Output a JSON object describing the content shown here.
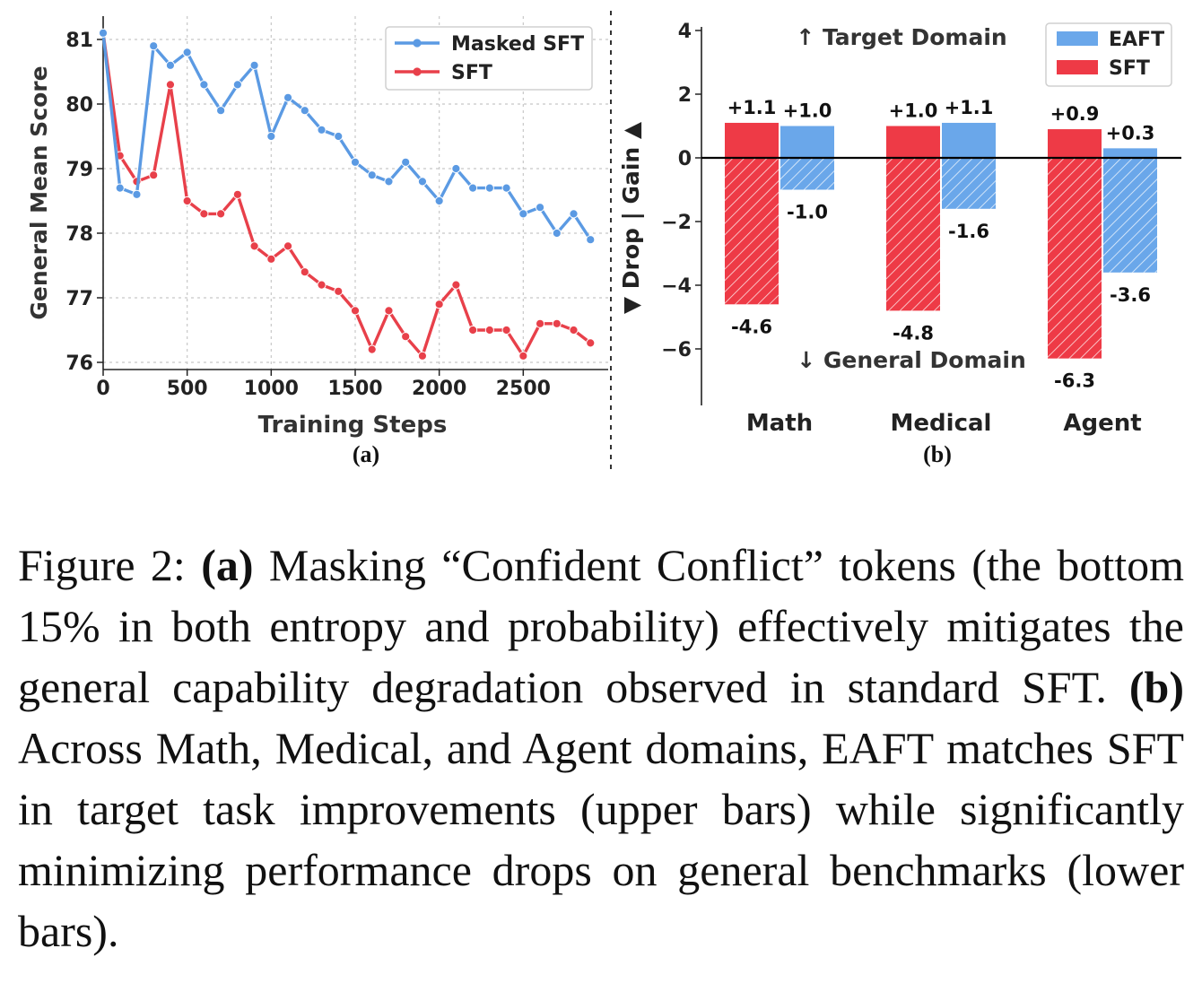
{
  "chart_data": [
    {
      "type": "line",
      "panel_label": "(a)",
      "xlabel": "Training Steps",
      "ylabel": "General Mean Score",
      "xlim": [
        0,
        2920
      ],
      "ylim": [
        75.9,
        81.2
      ],
      "xticks": [
        "0",
        "500",
        "1000",
        "1500",
        "2000",
        "2500"
      ],
      "yticks": [
        "76",
        "77",
        "78",
        "79",
        "80",
        "81"
      ],
      "legend_position": "top-right",
      "grid": true,
      "series": [
        {
          "name": "Masked SFT",
          "color": "#5b9ae3",
          "x": [
            0,
            100,
            200,
            300,
            400,
            500,
            600,
            700,
            800,
            900,
            1000,
            1100,
            1200,
            1300,
            1400,
            1500,
            1600,
            1700,
            1800,
            1900,
            2000,
            2100,
            2200,
            2300,
            2400,
            2500,
            2600,
            2700,
            2800,
            2900
          ],
          "values": [
            81.1,
            78.7,
            78.6,
            80.9,
            80.6,
            80.8,
            80.3,
            79.9,
            80.3,
            80.6,
            79.5,
            80.1,
            79.9,
            79.6,
            79.5,
            79.1,
            78.9,
            78.8,
            79.1,
            78.8,
            78.5,
            79.0,
            78.7,
            78.7,
            78.7,
            78.3,
            78.4,
            78.0,
            78.3,
            77.9
          ]
        },
        {
          "name": "SFT",
          "color": "#e8404a",
          "x": [
            0,
            100,
            200,
            300,
            400,
            500,
            600,
            700,
            800,
            900,
            1000,
            1100,
            1200,
            1300,
            1400,
            1500,
            1600,
            1700,
            1800,
            1900,
            2000,
            2100,
            2200,
            2300,
            2400,
            2500,
            2600,
            2700,
            2800,
            2900
          ],
          "values": [
            81.1,
            79.2,
            78.8,
            78.9,
            80.3,
            78.5,
            78.3,
            78.3,
            78.6,
            77.8,
            77.6,
            77.8,
            77.4,
            77.2,
            77.1,
            76.8,
            76.2,
            76.8,
            76.4,
            76.1,
            76.9,
            77.2,
            76.5,
            76.5,
            76.5,
            76.1,
            76.6,
            76.6,
            76.5,
            76.3
          ]
        }
      ]
    },
    {
      "type": "bar",
      "panel_label": "(b)",
      "ylabel": "▼ Drop | Gain ▲",
      "ylim": [
        -7.8,
        4.0
      ],
      "yticks": [
        "-6",
        "-4",
        "-2",
        "0",
        "2",
        "4"
      ],
      "categories": [
        "Math",
        "Medical",
        "Agent"
      ],
      "annotations": {
        "top": "↑ Target Domain",
        "bottom": "↓ General Domain"
      },
      "legend_position": "top-right",
      "series": [
        {
          "name": "SFT",
          "color": "#ee3a46",
          "gain": [
            1.1,
            1.0,
            0.9
          ],
          "drop": [
            -4.6,
            -4.8,
            -6.3
          ],
          "gain_labels": [
            "+1.1",
            "+1.0",
            "+0.9"
          ],
          "drop_labels": [
            "-4.6",
            "-4.8",
            "-6.3"
          ]
        },
        {
          "name": "EAFT",
          "color": "#6aa7ea",
          "gain": [
            1.0,
            1.1,
            0.3
          ],
          "drop": [
            -1.0,
            -1.6,
            -3.6
          ],
          "gain_labels": [
            "+1.0",
            "+1.1",
            "+0.3"
          ],
          "drop_labels": [
            "-1.0",
            "-1.6",
            "-3.6"
          ]
        }
      ]
    }
  ],
  "caption": {
    "prefix": "Figure 2:",
    "a_label": "(a)",
    "a_text": "Masking “Confident Conflict” tokens (the bottom 15% in both entropy and probability) effectively mitigates the general capability degradation observed in standard SFT.",
    "b_label": "(b)",
    "b_text": "Across Math, Medical, and Agent domains, EAFT matches SFT in target task improvements (upper bars) while significantly minimizing performance drops on general benchmarks (lower bars)."
  }
}
